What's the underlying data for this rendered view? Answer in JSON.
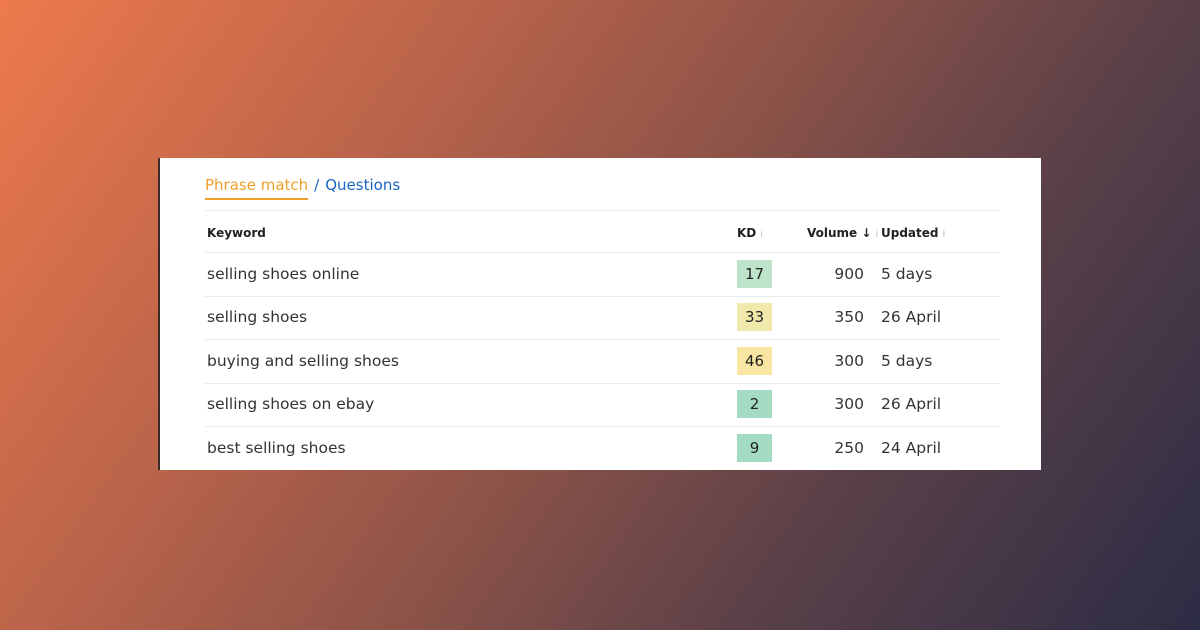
{
  "tabs": {
    "active": "Phrase match",
    "separator": "/",
    "other": "Questions"
  },
  "columns": {
    "keyword": "Keyword",
    "kd": "KD",
    "volume": "Volume",
    "sort_icon": "↓",
    "updated": "Updated",
    "info_icon": "i"
  },
  "rows": [
    {
      "keyword": "selling shoes online",
      "kd": "17",
      "kd_color": "#bde3c9",
      "volume": "900",
      "updated": "5 days"
    },
    {
      "keyword": "selling shoes",
      "kd": "33",
      "kd_color": "#f1e9ab",
      "volume": "350",
      "updated": "26 April"
    },
    {
      "keyword": "buying and selling shoes",
      "kd": "46",
      "kd_color": "#f9e6a3",
      "volume": "300",
      "updated": "5 days"
    },
    {
      "keyword": "selling shoes on ebay",
      "kd": "2",
      "kd_color": "#a3dcc3",
      "volume": "300",
      "updated": "26 April"
    },
    {
      "keyword": "best selling shoes",
      "kd": "9",
      "kd_color": "#a3dcc3",
      "volume": "250",
      "updated": "24 April"
    }
  ]
}
